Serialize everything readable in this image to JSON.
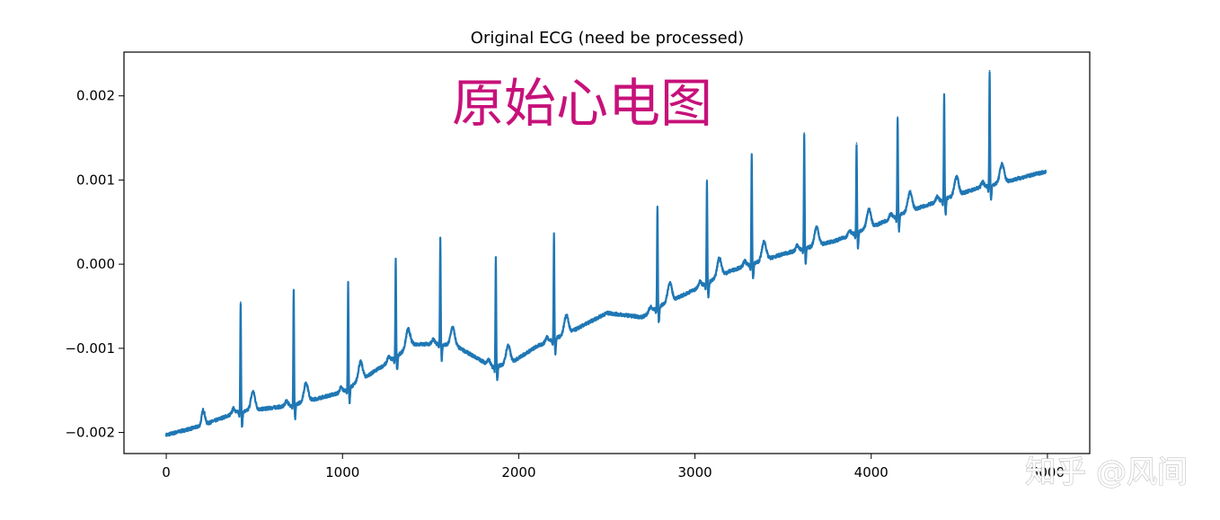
{
  "colors": {
    "line": "#1f77b4",
    "overlay": "#c7117a",
    "axes": "#000000"
  },
  "chart_data": {
    "type": "line",
    "title": "Original ECG (need be processed)",
    "xlabel": "",
    "ylabel": "",
    "xlim": [
      -240,
      5240
    ],
    "ylim": [
      -0.00225,
      0.00252
    ],
    "xticks": [
      0,
      1000,
      2000,
      3000,
      4000,
      5000
    ],
    "xtick_labels": [
      "0",
      "1000",
      "2000",
      "3000",
      "4000",
      "5000"
    ],
    "yticks": [
      -0.002,
      -0.001,
      0.0,
      0.001,
      0.002
    ],
    "ytick_labels": [
      "−0.002",
      "−0.001",
      "0.000",
      "0.001",
      "0.002"
    ],
    "grid": false,
    "annotation": "原始心电图",
    "series": [
      {
        "baseline": [
          [
            0,
            -0.00203
          ],
          [
            200,
            -0.00192
          ],
          [
            400,
            -0.00176
          ],
          [
            700,
            -0.00168
          ],
          [
            1000,
            -0.00152
          ],
          [
            1250,
            -0.00118
          ],
          [
            1400,
            -0.00095
          ],
          [
            1550,
            -0.00095
          ],
          [
            1650,
            -0.00098
          ],
          [
            1750,
            -0.0011
          ],
          [
            1850,
            -0.00122
          ],
          [
            1950,
            -0.00118
          ],
          [
            2100,
            -0.00098
          ],
          [
            2300,
            -0.0008
          ],
          [
            2500,
            -0.00058
          ],
          [
            2700,
            -0.00063
          ],
          [
            2800,
            -0.0005
          ],
          [
            3000,
            -0.0003
          ],
          [
            3200,
            -8e-05
          ],
          [
            3500,
            0.00012
          ],
          [
            3800,
            0.00028
          ],
          [
            4000,
            0.00044
          ],
          [
            4200,
            0.00062
          ],
          [
            4400,
            0.00076
          ],
          [
            4600,
            0.0009
          ],
          [
            4800,
            0.001
          ],
          [
            4990,
            0.0011
          ]
        ],
        "r_peaks": [
          [
            422,
            -0.00045
          ],
          [
            723,
            -0.0003
          ],
          [
            1032,
            -0.00021
          ],
          [
            1302,
            6e-05
          ],
          [
            1555,
            0.00032
          ],
          [
            1870,
            8e-05
          ],
          [
            2200,
            0.00037
          ],
          [
            2787,
            0.00069
          ],
          [
            3068,
            0.001
          ],
          [
            3322,
            0.00131
          ],
          [
            3620,
            0.00156
          ],
          [
            3917,
            0.00144
          ],
          [
            4150,
            0.00175
          ],
          [
            4414,
            0.00202
          ],
          [
            4672,
            0.0023
          ]
        ]
      }
    ]
  },
  "watermark": "知乎 @风间"
}
